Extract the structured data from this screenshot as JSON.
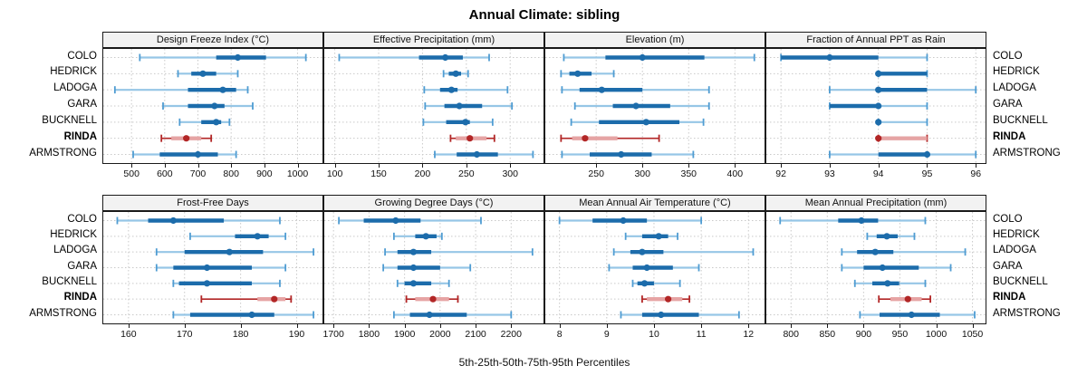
{
  "title": "Annual Climate: sibling",
  "footer": "5th-25th-50th-75th-95th Percentiles",
  "colors": {
    "blue_dark": "#1c6cab",
    "blue_light": "#96c6e6",
    "blue_cap": "#4f9cd2",
    "red_dark": "#b22626",
    "red_light": "#e6a4a4",
    "grid": "#c9c9c9",
    "header_bg": "#f2f2f2",
    "border": "#1a1a1a"
  },
  "chart_data": {
    "type": "percentile_dotplot_trellis",
    "layout": "2 rows x 4 cols",
    "caption": "5th-25th-50th-75th-95th Percentiles",
    "categories": [
      "COLO",
      "HEDRICK",
      "LADOGA",
      "GARA",
      "BUCKNELL",
      "RINDA",
      "ARMSTRONG"
    ],
    "highlight": "RINDA",
    "percentile_levels": [
      5,
      25,
      50,
      75,
      95
    ],
    "panels": [
      {
        "title": "Design Freeze Index (°C)",
        "xlim": [
          415,
          1075
        ],
        "ticks": [
          500,
          600,
          700,
          800,
          900,
          1000
        ],
        "percentiles": {
          "COLO": [
            525,
            755,
            820,
            905,
            1025
          ],
          "HEDRICK": [
            640,
            680,
            715,
            755,
            820
          ],
          "LADOGA": [
            450,
            670,
            775,
            815,
            850
          ],
          "GARA": [
            595,
            670,
            750,
            780,
            865
          ],
          "BUCKNELL": [
            645,
            710,
            755,
            770,
            795
          ],
          "RINDA": [
            590,
            620,
            665,
            710,
            740
          ],
          "ARMSTRONG": [
            505,
            585,
            700,
            760,
            815
          ]
        }
      },
      {
        "title": "Effective Precipitation (mm)",
        "xlim": [
          88,
          338
        ],
        "ticks": [
          100,
          150,
          200,
          250,
          300
        ],
        "percentiles": {
          "COLO": [
            105,
            196,
            226,
            246,
            276
          ],
          "HEDRICK": [
            224,
            230,
            238,
            244,
            252
          ],
          "LADOGA": [
            202,
            220,
            233,
            240,
            297
          ],
          "GARA": [
            203,
            225,
            242,
            268,
            302
          ],
          "BUCKNELL": [
            201,
            227,
            249,
            254,
            280
          ],
          "RINDA": [
            232,
            238,
            254,
            273,
            282
          ],
          "ARMSTRONG": [
            214,
            239,
            262,
            286,
            326
          ]
        }
      },
      {
        "title": "Elevation (m)",
        "xlim": [
          195,
          432
        ],
        "ticks": [
          250,
          300,
          350,
          400
        ],
        "percentiles": {
          "COLO": [
            215,
            260,
            300,
            367,
            421
          ],
          "HEDRICK": [
            212,
            221,
            230,
            245,
            269
          ],
          "LADOGA": [
            213,
            232,
            256,
            300,
            372
          ],
          "GARA": [
            227,
            268,
            293,
            330,
            372
          ],
          "BUCKNELL": [
            223,
            253,
            304,
            340,
            366
          ],
          "RINDA": [
            212,
            224,
            238,
            273,
            318
          ],
          "ARMSTRONG": [
            213,
            243,
            277,
            310,
            355
          ]
        }
      },
      {
        "title": "Fraction of Annual PPT as Rain",
        "xlim": [
          91.7,
          96.2
        ],
        "ticks": [
          92,
          93,
          94,
          95,
          96
        ],
        "percentiles": {
          "COLO": [
            92,
            92,
            93,
            94,
            95
          ],
          "HEDRICK": [
            94,
            94,
            94,
            95,
            95
          ],
          "LADOGA": [
            93,
            94,
            94,
            95,
            96
          ],
          "GARA": [
            93,
            93,
            94,
            94,
            95
          ],
          "BUCKNELL": [
            94,
            94,
            94,
            94,
            95
          ],
          "RINDA": [
            94,
            94,
            94,
            95,
            95
          ],
          "ARMSTRONG": [
            93,
            94,
            95,
            95,
            96
          ]
        }
      },
      {
        "title": "Frost-Free Days",
        "xlim": [
          155.5,
          194.6
        ],
        "ticks": [
          160,
          170,
          180,
          190
        ],
        "percentiles": {
          "COLO": [
            158,
            163.5,
            168,
            177,
            187
          ],
          "HEDRICK": [
            171,
            179,
            183,
            185,
            188
          ],
          "LADOGA": [
            165,
            170,
            178,
            184,
            193
          ],
          "GARA": [
            165,
            168,
            174,
            182,
            188
          ],
          "BUCKNELL": [
            168,
            169,
            174,
            182,
            187
          ],
          "RINDA": [
            173,
            183,
            186,
            188,
            189
          ],
          "ARMSTRONG": [
            168,
            171,
            182,
            186,
            193
          ]
        }
      },
      {
        "title": "Growing Degree Days (°C)",
        "xlim": [
          1674,
          2291
        ],
        "ticks": [
          1700,
          1800,
          1900,
          2000,
          2100,
          2200
        ],
        "percentiles": {
          "COLO": [
            1715,
            1785,
            1875,
            1945,
            2115
          ],
          "HEDRICK": [
            1870,
            1930,
            1960,
            1990,
            2005
          ],
          "LADOGA": [
            1845,
            1880,
            1925,
            1975,
            2260
          ],
          "GARA": [
            1840,
            1880,
            1925,
            2000,
            2085
          ],
          "BUCKNELL": [
            1880,
            1900,
            1925,
            1975,
            2025
          ],
          "RINDA": [
            1905,
            1930,
            1980,
            2025,
            2050
          ],
          "ARMSTRONG": [
            1870,
            1915,
            1970,
            2075,
            2200
          ]
        }
      },
      {
        "title": "Mean Annual Air Temperature (°C)",
        "xlim": [
          7.7,
          12.34
        ],
        "ticks": [
          8,
          9,
          10,
          11,
          12
        ],
        "percentiles": {
          "COLO": [
            8.0,
            8.7,
            9.35,
            9.85,
            11.0
          ],
          "HEDRICK": [
            9.4,
            9.75,
            10.1,
            10.3,
            10.5
          ],
          "LADOGA": [
            9.15,
            9.5,
            9.75,
            10.2,
            12.1
          ],
          "GARA": [
            9.05,
            9.55,
            9.85,
            10.4,
            10.95
          ],
          "BUCKNELL": [
            9.55,
            9.65,
            9.8,
            10.0,
            10.55
          ],
          "RINDA": [
            9.75,
            9.85,
            10.3,
            10.6,
            10.75
          ],
          "ARMSTRONG": [
            9.3,
            9.75,
            10.15,
            10.95,
            11.8
          ]
        }
      },
      {
        "title": "Mean Annual Precipitation (mm)",
        "xlim": [
          766,
          1068
        ],
        "ticks": [
          800,
          850,
          900,
          950,
          1000,
          1050
        ],
        "percentiles": {
          "COLO": [
            785,
            865,
            897,
            920,
            985
          ],
          "HEDRICK": [
            905,
            918,
            932,
            947,
            970
          ],
          "LADOGA": [
            870,
            891,
            916,
            941,
            1040
          ],
          "GARA": [
            870,
            900,
            926,
            976,
            1020
          ],
          "BUCKNELL": [
            888,
            912,
            933,
            949,
            985
          ],
          "RINDA": [
            921,
            937,
            961,
            980,
            992
          ],
          "ARMSTRONG": [
            895,
            922,
            966,
            1005,
            1053
          ]
        }
      }
    ]
  }
}
